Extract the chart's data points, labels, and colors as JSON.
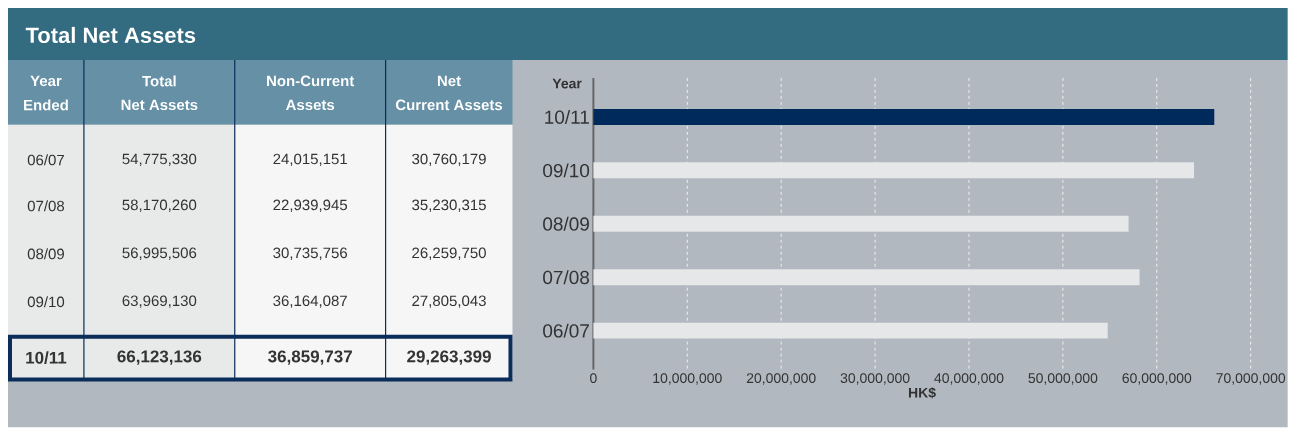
{
  "chart_data": [
    {
      "type": "other",
      "title": "Total Net Assets",
      "annotations": [
        "Year",
        "Ended",
        "Total",
        "Net Assets",
        "Non-Current",
        "Assets",
        "Net",
        "Current Assets",
        "06/07",
        "54,775,330",
        "24,015,151",
        "30,760,179",
        "07/08",
        "58,170,260",
        "22,939,945",
        "35,230,315",
        "08/09",
        "56,995,506",
        "30,735,756",
        "26,259,750",
        "09/10",
        "63,969,130",
        "36,164,087",
        "27,805,043",
        "10/11",
        "66,123,136",
        "36,859,737",
        "29,263,399"
      ]
    },
    {
      "type": "bar",
      "orientation": "horizontal",
      "ylabel": "Year",
      "xlabel": "HK$",
      "categories": [
        "10/11",
        "09/10",
        "08/09",
        "07/08",
        "06/07"
      ],
      "values": [
        66123136,
        63969130,
        56995506,
        58170260,
        54775330
      ],
      "colors": [
        "#002a5c",
        "#e6e7e8",
        "#e6e7e8",
        "#e6e7e8",
        "#e6e7e8"
      ],
      "xlim": [
        0,
        70000000
      ],
      "xticks": [
        0,
        {
          "value": 10000000,
          "label": "10,000,000"
        },
        {
          "value": 20000000,
          "label": "20,000,000"
        },
        {
          "value": 30000000,
          "label": "30,000,000"
        },
        {
          "value": 40000000,
          "label": "40,000,000"
        },
        {
          "value": 50000000,
          "label": "50,000,000"
        },
        {
          "value": 60000000,
          "label": "60,000,000"
        },
        {
          "value": 70000000,
          "label": "70,000,000"
        }
      ],
      "grid": "x"
    }
  ]
}
